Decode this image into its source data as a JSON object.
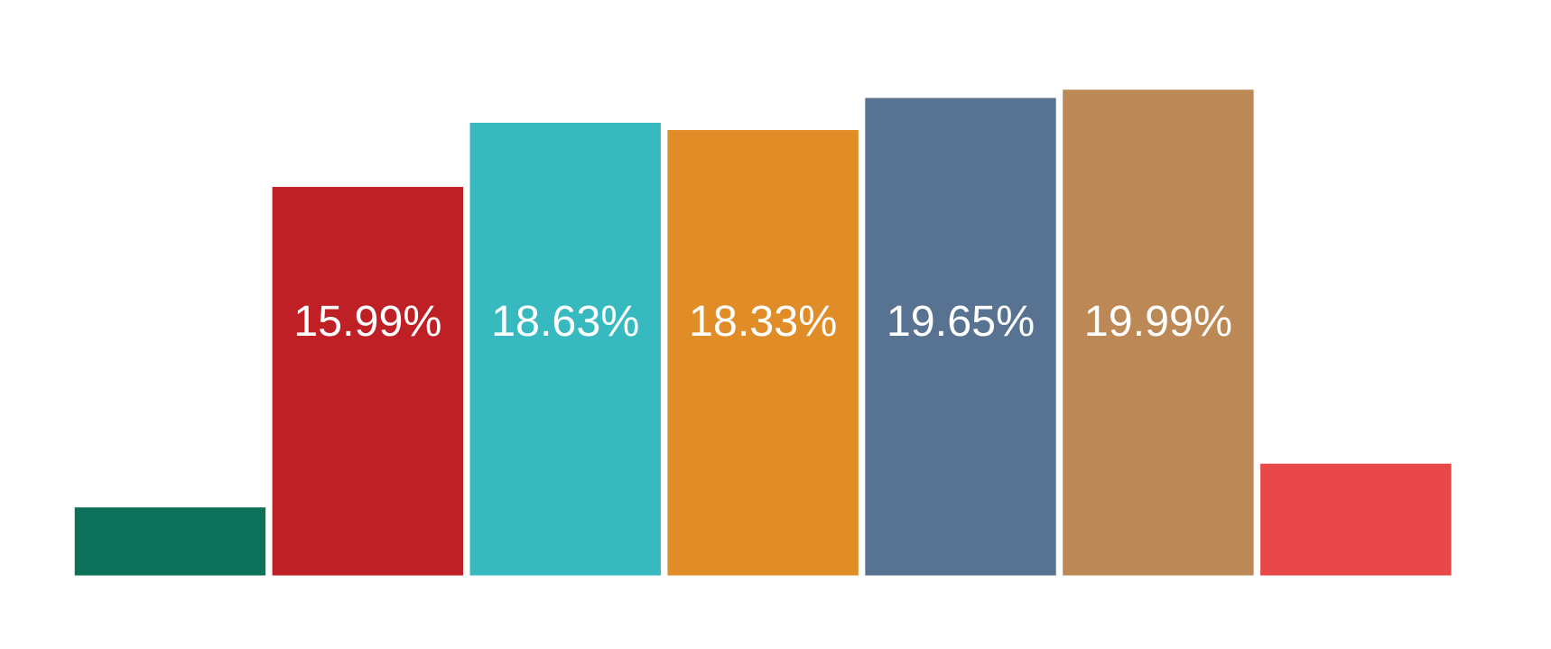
{
  "chart_data": {
    "type": "bar",
    "title": "",
    "xlabel": "",
    "ylabel": "",
    "grid": false,
    "axes_visible": false,
    "values": [
      2.8,
      15.99,
      18.63,
      18.33,
      19.65,
      19.99,
      4.6
    ],
    "data_labels": [
      "",
      "15.99%",
      "18.63%",
      "18.33%",
      "19.65%",
      "19.99%",
      ""
    ],
    "colors": [
      "#0c7159",
      "#bf2026",
      "#37b9c0",
      "#e08c27",
      "#577391",
      "#bc8855",
      "#e84848"
    ],
    "label_color": "#ffffff",
    "background": "#ffffff"
  }
}
